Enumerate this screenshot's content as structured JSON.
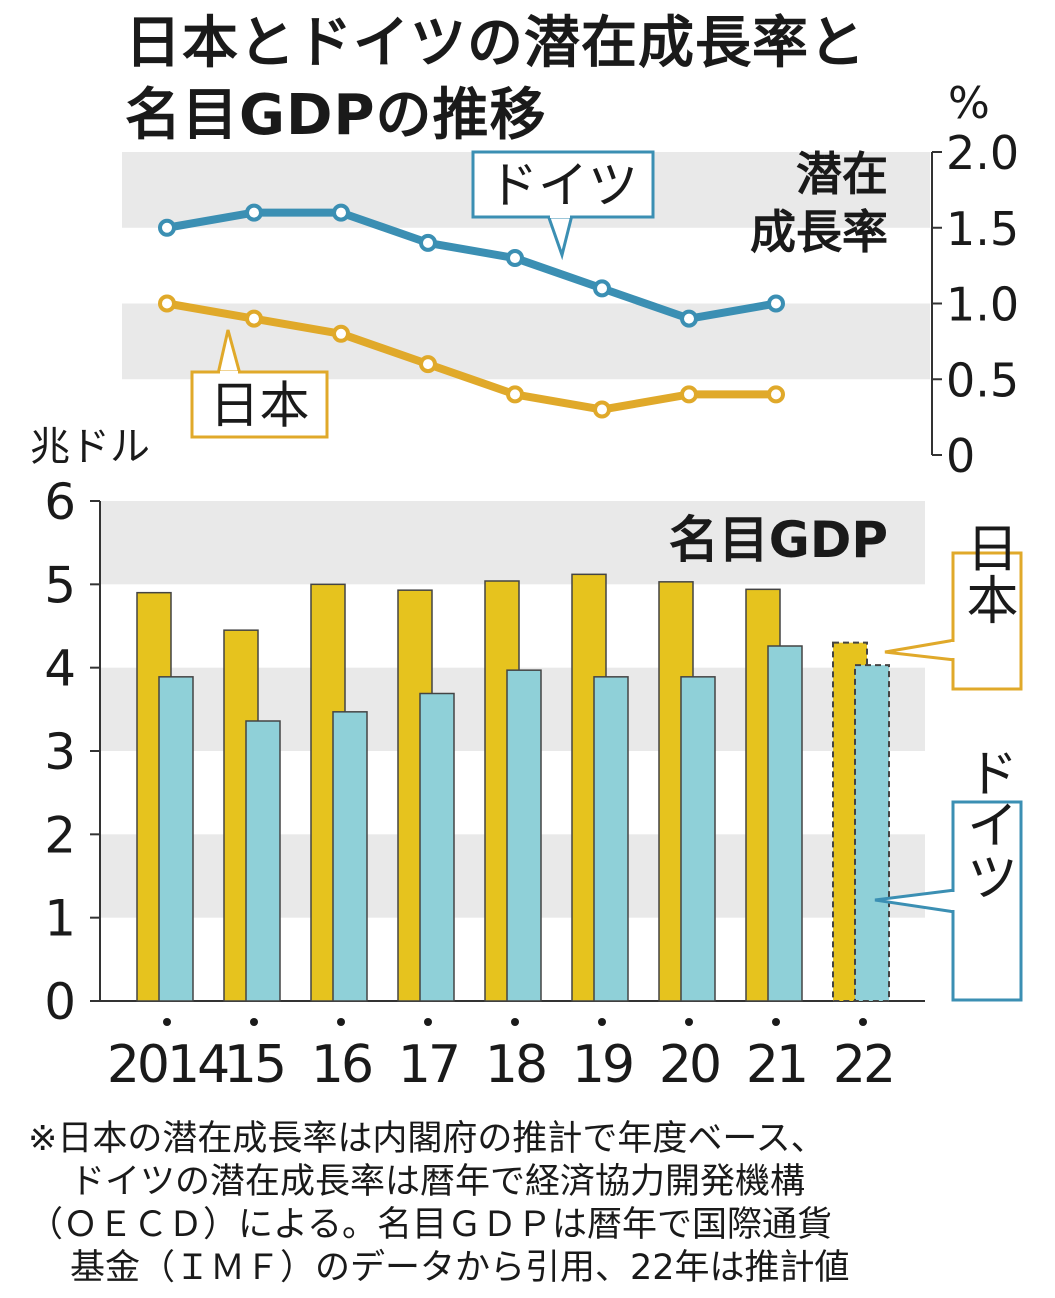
{
  "title": {
    "line1": "日本とドイツの潜在成長率と",
    "line2": "名目GDPの推移"
  },
  "colors": {
    "japan_line": "#e0a92a",
    "germany_line": "#3b8fb3",
    "japan_bar": "#e6c31e",
    "germany_bar": "#8fd0d8",
    "band": "#e9e9e9",
    "axis": "#333333"
  },
  "chart_data": [
    {
      "type": "line",
      "title": "潜在成長率",
      "title_line1": "潜在",
      "title_line2": "成長率",
      "ylabel": "%",
      "ylim": [
        0,
        2.0
      ],
      "yticks": [
        "0",
        "0.5",
        "1.0",
        "1.5",
        "2.0"
      ],
      "x": [
        "2014",
        "15",
        "16",
        "17",
        "18",
        "19",
        "20",
        "21"
      ],
      "series": [
        {
          "name": "ドイツ",
          "values": [
            1.5,
            1.6,
            1.6,
            1.4,
            1.3,
            1.1,
            0.9,
            1.0
          ]
        },
        {
          "name": "日本",
          "values": [
            1.0,
            0.9,
            0.8,
            0.6,
            0.4,
            0.3,
            0.4,
            0.4
          ]
        }
      ],
      "legend": {
        "germany": "ドイツ",
        "japan": "日本"
      }
    },
    {
      "type": "bar",
      "title": "名目GDP",
      "ylabel": "兆ドル",
      "ylim": [
        0,
        6
      ],
      "yticks": [
        "0",
        "1",
        "2",
        "3",
        "4",
        "5",
        "6"
      ],
      "categories": [
        "2014",
        "15",
        "16",
        "17",
        "18",
        "19",
        "20",
        "21",
        "22"
      ],
      "series": [
        {
          "name": "日本",
          "values": [
            4.9,
            4.45,
            5.0,
            4.93,
            5.04,
            5.12,
            5.03,
            4.94,
            4.3
          ]
        },
        {
          "name": "ドイツ",
          "values": [
            3.89,
            3.36,
            3.47,
            3.69,
            3.97,
            3.89,
            3.89,
            4.26,
            4.03
          ]
        }
      ],
      "estimated_categories": [
        "22"
      ],
      "legend": {
        "japan": "日本",
        "germany": "ドイツ"
      }
    }
  ],
  "footnote": {
    "line1": "※日本の潜在成長率は内閣府の推計で年度ベース、",
    "line2": "ドイツの潜在成長率は暦年で経済協力開発機構",
    "line3": "（ＯＥＣＤ）による。名目ＧＤＰは暦年で国際通貨",
    "line4": "基金（ＩＭＦ）のデータから引用、22年は推計値"
  }
}
